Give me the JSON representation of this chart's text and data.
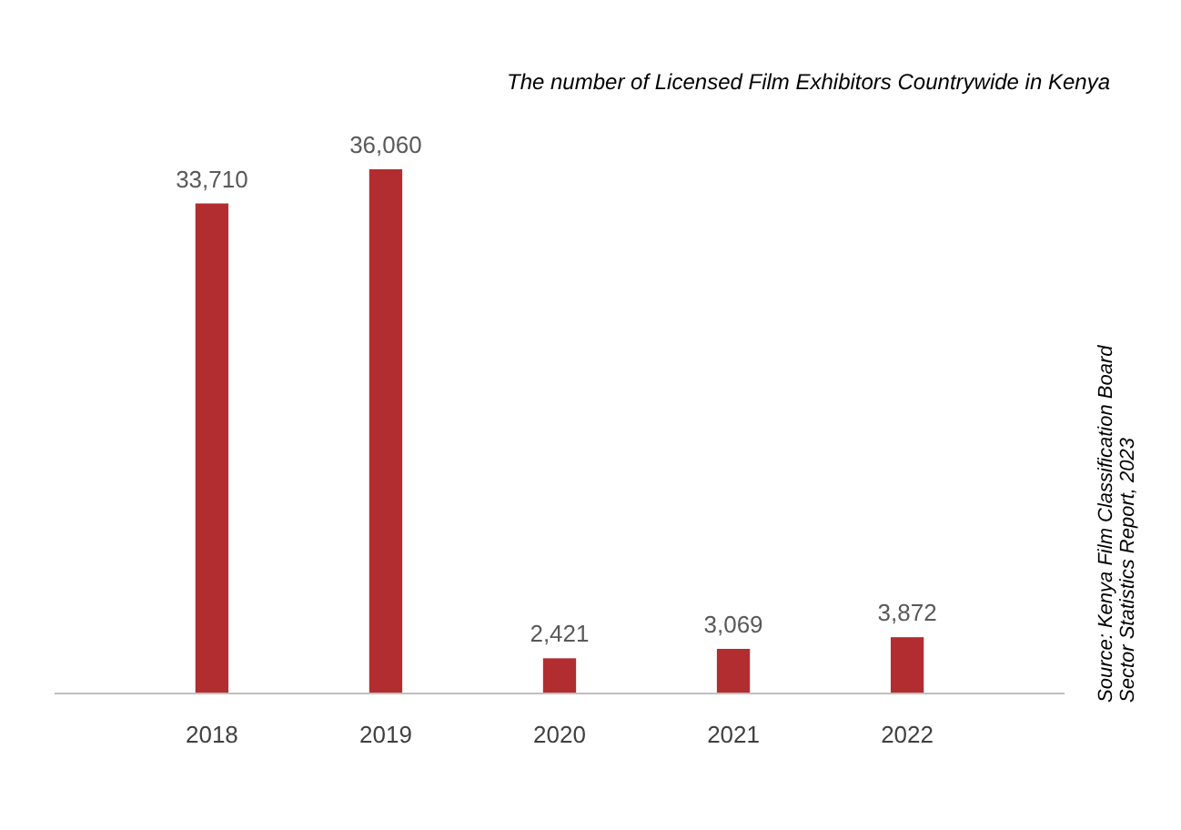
{
  "chart_data": {
    "type": "bar",
    "title": "The number of Licensed Film Exhibitors Countrywide in Kenya",
    "categories": [
      "2018",
      "2019",
      "2020",
      "2021",
      "2022"
    ],
    "values": [
      33710,
      36060,
      2421,
      3069,
      3872
    ],
    "color": "#b22d30",
    "value_labels": [
      "33,710",
      "36,060",
      "2,421",
      "3,069",
      "3,872"
    ],
    "annotations": [
      "Source: Kenya Film Classification Board Sector Statistics Report, 2023"
    ]
  }
}
